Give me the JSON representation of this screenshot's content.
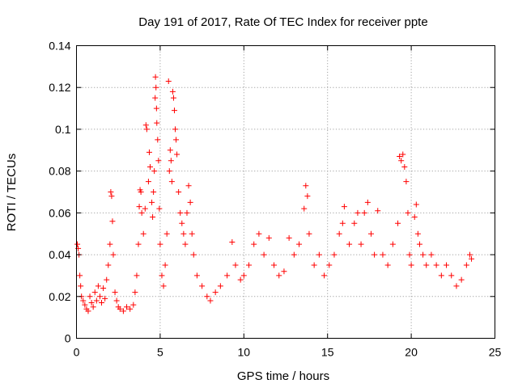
{
  "chart_data": {
    "type": "scatter",
    "title": "Day 191 of 2017, Rate Of TEC Index for receiver ppte",
    "xlabel": "GPS time / hours",
    "ylabel": "ROTI / TECUs",
    "xlim": [
      0,
      25
    ],
    "ylim": [
      0,
      0.14
    ],
    "xticks": [
      0,
      5,
      10,
      15,
      20,
      25
    ],
    "yticks": [
      0,
      0.02,
      0.04,
      0.06,
      0.08,
      0.1,
      0.12,
      0.14
    ],
    "ytick_labels": [
      "0",
      "0.02",
      "0.04",
      "0.06",
      "0.08",
      "0.1",
      "0.12",
      "0.14"
    ],
    "xtick_labels": [
      "0",
      "5",
      "10",
      "15",
      "20",
      "25"
    ],
    "grid": true,
    "marker": "plus",
    "color": "#ff0000",
    "series": [
      {
        "points": [
          [
            0.05,
            0.045
          ],
          [
            0.1,
            0.043
          ],
          [
            0.15,
            0.04
          ],
          [
            0.2,
            0.03
          ],
          [
            0.25,
            0.025
          ],
          [
            0.3,
            0.02
          ],
          [
            0.4,
            0.018
          ],
          [
            0.5,
            0.016
          ],
          [
            0.6,
            0.014
          ],
          [
            0.7,
            0.013
          ],
          [
            0.8,
            0.02
          ],
          [
            0.9,
            0.017
          ],
          [
            1.0,
            0.015
          ],
          [
            1.1,
            0.022
          ],
          [
            1.2,
            0.018
          ],
          [
            1.3,
            0.025
          ],
          [
            1.4,
            0.02
          ],
          [
            1.5,
            0.017
          ],
          [
            1.6,
            0.024
          ],
          [
            1.7,
            0.019
          ],
          [
            1.8,
            0.028
          ],
          [
            1.9,
            0.035
          ],
          [
            2.0,
            0.045
          ],
          [
            2.05,
            0.07
          ],
          [
            2.1,
            0.068
          ],
          [
            2.15,
            0.056
          ],
          [
            2.2,
            0.04
          ],
          [
            2.3,
            0.022
          ],
          [
            2.4,
            0.018
          ],
          [
            2.5,
            0.015
          ],
          [
            2.6,
            0.014
          ],
          [
            2.8,
            0.013
          ],
          [
            3.0,
            0.015
          ],
          [
            3.2,
            0.014
          ],
          [
            3.4,
            0.016
          ],
          [
            3.5,
            0.022
          ],
          [
            3.6,
            0.03
          ],
          [
            3.7,
            0.045
          ],
          [
            3.75,
            0.063
          ],
          [
            3.8,
            0.071
          ],
          [
            3.85,
            0.07
          ],
          [
            3.9,
            0.06
          ],
          [
            4.0,
            0.05
          ],
          [
            4.1,
            0.062
          ],
          [
            4.15,
            0.102
          ],
          [
            4.2,
            0.1
          ],
          [
            4.3,
            0.075
          ],
          [
            4.35,
            0.089
          ],
          [
            4.4,
            0.082
          ],
          [
            4.5,
            0.065
          ],
          [
            4.55,
            0.058
          ],
          [
            4.6,
            0.07
          ],
          [
            4.65,
            0.08
          ],
          [
            4.7,
            0.115
          ],
          [
            4.72,
            0.125
          ],
          [
            4.75,
            0.12
          ],
          [
            4.78,
            0.11
          ],
          [
            4.8,
            0.103
          ],
          [
            4.85,
            0.095
          ],
          [
            4.9,
            0.085
          ],
          [
            4.95,
            0.062
          ],
          [
            5.0,
            0.045
          ],
          [
            5.1,
            0.03
          ],
          [
            5.2,
            0.025
          ],
          [
            5.3,
            0.035
          ],
          [
            5.4,
            0.05
          ],
          [
            5.5,
            0.123
          ],
          [
            5.55,
            0.08
          ],
          [
            5.6,
            0.09
          ],
          [
            5.65,
            0.085
          ],
          [
            5.7,
            0.075
          ],
          [
            5.75,
            0.118
          ],
          [
            5.8,
            0.115
          ],
          [
            5.85,
            0.109
          ],
          [
            5.9,
            0.1
          ],
          [
            5.95,
            0.095
          ],
          [
            6.0,
            0.088
          ],
          [
            6.1,
            0.07
          ],
          [
            6.2,
            0.06
          ],
          [
            6.3,
            0.055
          ],
          [
            6.4,
            0.05
          ],
          [
            6.5,
            0.045
          ],
          [
            6.6,
            0.06
          ],
          [
            6.7,
            0.073
          ],
          [
            6.8,
            0.065
          ],
          [
            6.9,
            0.05
          ],
          [
            7.0,
            0.04
          ],
          [
            7.2,
            0.03
          ],
          [
            7.5,
            0.025
          ],
          [
            7.8,
            0.02
          ],
          [
            8.0,
            0.018
          ],
          [
            8.3,
            0.022
          ],
          [
            8.6,
            0.025
          ],
          [
            9.0,
            0.03
          ],
          [
            9.3,
            0.046
          ],
          [
            9.5,
            0.035
          ],
          [
            9.8,
            0.028
          ],
          [
            10.0,
            0.03
          ],
          [
            10.3,
            0.035
          ],
          [
            10.6,
            0.045
          ],
          [
            10.9,
            0.05
          ],
          [
            11.2,
            0.04
          ],
          [
            11.5,
            0.048
          ],
          [
            11.8,
            0.035
          ],
          [
            12.1,
            0.03
          ],
          [
            12.4,
            0.032
          ],
          [
            12.7,
            0.048
          ],
          [
            13.0,
            0.04
          ],
          [
            13.3,
            0.045
          ],
          [
            13.6,
            0.062
          ],
          [
            13.7,
            0.073
          ],
          [
            13.8,
            0.068
          ],
          [
            13.9,
            0.05
          ],
          [
            14.2,
            0.035
          ],
          [
            14.5,
            0.04
          ],
          [
            14.8,
            0.03
          ],
          [
            15.1,
            0.035
          ],
          [
            15.4,
            0.04
          ],
          [
            15.7,
            0.05
          ],
          [
            15.9,
            0.055
          ],
          [
            16.0,
            0.063
          ],
          [
            16.3,
            0.045
          ],
          [
            16.6,
            0.055
          ],
          [
            16.8,
            0.06
          ],
          [
            17.0,
            0.045
          ],
          [
            17.2,
            0.06
          ],
          [
            17.4,
            0.065
          ],
          [
            17.6,
            0.05
          ],
          [
            17.8,
            0.04
          ],
          [
            18.0,
            0.061
          ],
          [
            18.3,
            0.04
          ],
          [
            18.6,
            0.035
          ],
          [
            18.9,
            0.045
          ],
          [
            19.2,
            0.055
          ],
          [
            19.3,
            0.087
          ],
          [
            19.4,
            0.085
          ],
          [
            19.5,
            0.088
          ],
          [
            19.6,
            0.082
          ],
          [
            19.7,
            0.075
          ],
          [
            19.8,
            0.06
          ],
          [
            19.9,
            0.04
          ],
          [
            20.0,
            0.035
          ],
          [
            20.2,
            0.058
          ],
          [
            20.3,
            0.064
          ],
          [
            20.4,
            0.05
          ],
          [
            20.5,
            0.045
          ],
          [
            20.7,
            0.04
          ],
          [
            20.9,
            0.035
          ],
          [
            21.2,
            0.04
          ],
          [
            21.5,
            0.035
          ],
          [
            21.8,
            0.03
          ],
          [
            22.1,
            0.035
          ],
          [
            22.4,
            0.03
          ],
          [
            22.7,
            0.025
          ],
          [
            23.0,
            0.028
          ],
          [
            23.3,
            0.035
          ],
          [
            23.5,
            0.04
          ],
          [
            23.6,
            0.038
          ]
        ]
      }
    ]
  }
}
